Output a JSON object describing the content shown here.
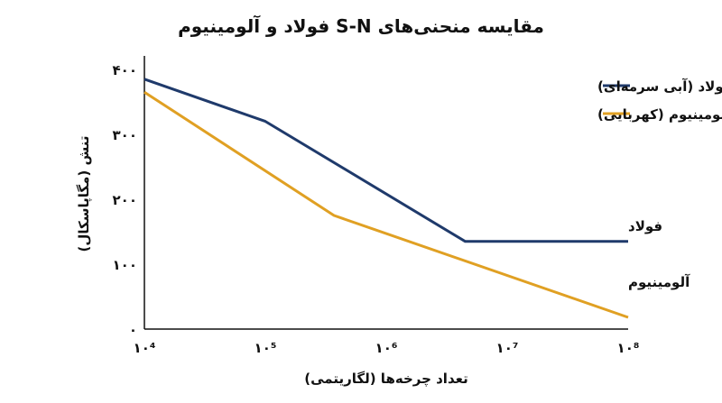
{
  "chart_data": {
    "type": "line",
    "title": "مقایسه منحنی‌های S-N فولاد و آلومینیوم",
    "xlabel": "تعداد چرخه‌ها (لگاریتمی)",
    "ylabel": "تنش (مگاپاسکال)",
    "x_scale": "log",
    "xlim": [
      10000,
      100000000
    ],
    "ylim": [
      0,
      400
    ],
    "x_ticks": [
      10000,
      100000,
      1000000,
      10000000,
      100000000
    ],
    "x_tick_labels": [
      "۱۰⁴",
      "۱۰⁵",
      "۱۰⁶",
      "۱۰⁷",
      "۱۰⁸"
    ],
    "y_ticks": [
      0,
      100,
      200,
      300,
      400
    ],
    "y_tick_labels": [
      "۰",
      "۱۰۰",
      "۲۰۰",
      "۳۰۰",
      "۴۰۰"
    ],
    "grid": false,
    "legend_position": "top-right",
    "series": [
      {
        "name": "فولاد (آبی سرمه‌ای)",
        "color": "#1f3a6b",
        "x": [
          10000,
          100000,
          4500000,
          100000000
        ],
        "y": [
          385,
          320,
          135,
          135
        ],
        "annotation": "فولاد"
      },
      {
        "name": "آلومینیوم (کهربایی)",
        "color": "#e0a023",
        "x": [
          10000,
          370000,
          100000000
        ],
        "y": [
          365,
          175,
          18
        ],
        "annotation": "آلومینیوم"
      }
    ]
  }
}
